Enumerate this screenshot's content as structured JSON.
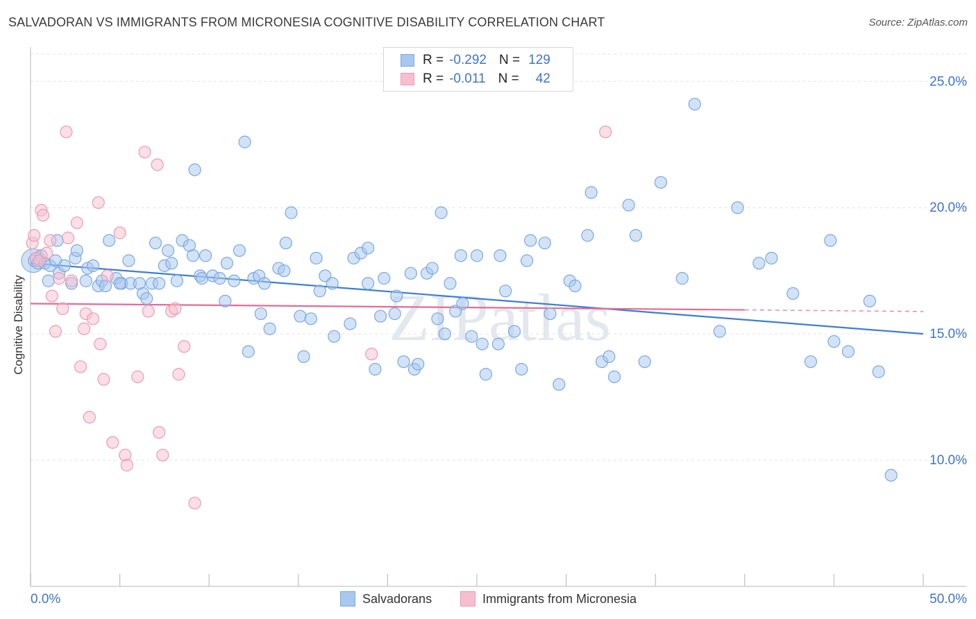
{
  "title": "SALVADORAN VS IMMIGRANTS FROM MICRONESIA COGNITIVE DISABILITY CORRELATION CHART",
  "source": "Source: ZipAtlas.com",
  "watermark": "ZIPatlas",
  "colors": {
    "blue_fill": "#a8c8ef",
    "blue_stroke": "#7aa8e0",
    "blue_line": "#3d7dd6",
    "pink_fill": "#f5bfd0",
    "pink_stroke": "#ec9ab5",
    "pink_line": "#e56b93",
    "axis_text": "#3e74c9",
    "grid": "#e3e3e3"
  },
  "legend": {
    "rows": [
      {
        "r_label": "R =",
        "r_value": "-0.292",
        "n_label": "N =",
        "n_value": "129"
      },
      {
        "r_label": "R =",
        "r_value": "-0.011",
        "n_label": "N =",
        "n_value": "42"
      }
    ]
  },
  "bottom_legend": {
    "series1": "Salvadorans",
    "series2": "Immigrants from Micronesia"
  },
  "chart_data": {
    "type": "scatter",
    "title": "SALVADORAN VS IMMIGRANTS FROM MICRONESIA COGNITIVE DISABILITY CORRELATION CHART",
    "xlabel": "",
    "ylabel": "Cognitive Disability",
    "xlim": [
      0,
      50
    ],
    "ylim": [
      5,
      26.3
    ],
    "x_tick_labels": [
      "0.0%",
      "50.0%"
    ],
    "y_ticks": [
      10,
      15,
      20,
      25
    ],
    "y_tick_labels": [
      "10.0%",
      "15.0%",
      "20.0%",
      "25.0%"
    ],
    "grid": true,
    "legend_position": "top-center",
    "series": [
      {
        "name": "Salvadorans",
        "R": -0.292,
        "N": 129,
        "trend": {
          "x": [
            0,
            50
          ],
          "y": [
            17.8,
            15.0
          ],
          "style": "solid"
        },
        "points": [
          [
            0.2,
            17.9
          ],
          [
            0.4,
            17.8
          ],
          [
            0.6,
            18.1
          ],
          [
            0.8,
            17.8
          ],
          [
            1.0,
            17.1
          ],
          [
            1.1,
            17.7
          ],
          [
            1.4,
            17.9
          ],
          [
            1.5,
            18.7
          ],
          [
            1.6,
            17.4
          ],
          [
            1.9,
            17.7
          ],
          [
            2.5,
            18.0
          ],
          [
            2.6,
            18.3
          ],
          [
            2.3,
            17.0
          ],
          [
            3.1,
            17.1
          ],
          [
            3.2,
            17.6
          ],
          [
            3.5,
            17.7
          ],
          [
            3.8,
            16.9
          ],
          [
            4.0,
            17.1
          ],
          [
            4.2,
            16.9
          ],
          [
            4.4,
            18.7
          ],
          [
            4.8,
            17.2
          ],
          [
            5.1,
            17.0
          ],
          [
            5.5,
            17.9
          ],
          [
            5.6,
            17.0
          ],
          [
            6.1,
            17.0
          ],
          [
            6.3,
            16.6
          ],
          [
            6.5,
            16.4
          ],
          [
            6.8,
            17.0
          ],
          [
            7.0,
            18.6
          ],
          [
            7.2,
            17.0
          ],
          [
            7.5,
            17.7
          ],
          [
            7.7,
            18.3
          ],
          [
            7.9,
            17.8
          ],
          [
            8.2,
            17.1
          ],
          [
            8.5,
            18.7
          ],
          [
            8.9,
            18.5
          ],
          [
            9.1,
            18.1
          ],
          [
            9.5,
            17.3
          ],
          [
            9.6,
            17.2
          ],
          [
            9.8,
            18.1
          ],
          [
            10.2,
            17.3
          ],
          [
            10.6,
            17.2
          ],
          [
            10.9,
            16.3
          ],
          [
            11.0,
            17.8
          ],
          [
            11.4,
            17.1
          ],
          [
            11.7,
            18.3
          ],
          [
            12.0,
            22.6
          ],
          [
            12.2,
            14.3
          ],
          [
            12.5,
            17.2
          ],
          [
            12.8,
            17.3
          ],
          [
            12.9,
            15.8
          ],
          [
            13.1,
            17.0
          ],
          [
            13.4,
            15.2
          ],
          [
            13.9,
            17.6
          ],
          [
            14.2,
            17.5
          ],
          [
            14.6,
            19.8
          ],
          [
            15.1,
            15.7
          ],
          [
            15.3,
            14.1
          ],
          [
            15.7,
            15.6
          ],
          [
            16.0,
            18.0
          ],
          [
            16.2,
            16.7
          ],
          [
            16.5,
            17.3
          ],
          [
            16.9,
            17.0
          ],
          [
            17.0,
            14.9
          ],
          [
            17.9,
            15.4
          ],
          [
            18.1,
            18.0
          ],
          [
            18.5,
            18.2
          ],
          [
            18.9,
            17.0
          ],
          [
            18.9,
            18.4
          ],
          [
            19.3,
            13.6
          ],
          [
            19.6,
            15.7
          ],
          [
            19.8,
            17.2
          ],
          [
            20.5,
            16.5
          ],
          [
            20.9,
            13.9
          ],
          [
            21.3,
            17.4
          ],
          [
            21.5,
            13.6
          ],
          [
            21.7,
            13.8
          ],
          [
            22.2,
            17.4
          ],
          [
            22.5,
            17.6
          ],
          [
            22.8,
            15.6
          ],
          [
            23.0,
            19.8
          ],
          [
            23.2,
            15.0
          ],
          [
            23.5,
            17.0
          ],
          [
            23.8,
            15.9
          ],
          [
            24.1,
            18.1
          ],
          [
            24.7,
            14.9
          ],
          [
            25.0,
            18.1
          ],
          [
            25.3,
            14.6
          ],
          [
            25.5,
            13.4
          ],
          [
            26.2,
            14.6
          ],
          [
            26.6,
            16.7
          ],
          [
            27.1,
            15.1
          ],
          [
            27.5,
            13.6
          ],
          [
            27.8,
            17.9
          ],
          [
            28.0,
            18.7
          ],
          [
            28.8,
            18.6
          ],
          [
            29.1,
            15.8
          ],
          [
            29.6,
            13.0
          ],
          [
            30.2,
            17.1
          ],
          [
            30.5,
            16.9
          ],
          [
            31.2,
            18.9
          ],
          [
            31.4,
            20.6
          ],
          [
            32.0,
            13.9
          ],
          [
            32.4,
            14.1
          ],
          [
            32.7,
            13.3
          ],
          [
            33.5,
            20.1
          ],
          [
            33.9,
            18.9
          ],
          [
            34.4,
            13.9
          ],
          [
            35.3,
            21.0
          ],
          [
            36.5,
            17.2
          ],
          [
            37.2,
            24.1
          ],
          [
            38.6,
            15.1
          ],
          [
            39.6,
            20.0
          ],
          [
            40.8,
            17.8
          ],
          [
            41.5,
            18.0
          ],
          [
            42.7,
            16.6
          ],
          [
            43.7,
            13.9
          ],
          [
            44.8,
            18.7
          ],
          [
            45.0,
            14.7
          ],
          [
            45.8,
            14.3
          ],
          [
            47.0,
            16.3
          ],
          [
            47.5,
            13.5
          ],
          [
            48.2,
            9.4
          ],
          [
            26.3,
            18.1
          ],
          [
            24.2,
            16.2
          ],
          [
            20.4,
            15.8
          ],
          [
            14.3,
            18.6
          ],
          [
            9.2,
            21.5
          ],
          [
            5.0,
            17.0
          ]
        ]
      },
      {
        "name": "Immigrants from Micronesia",
        "R": -0.011,
        "N": 42,
        "trend": {
          "x": [
            0,
            40
          ],
          "y": [
            16.2,
            15.95
          ],
          "style": "solid",
          "dashed_to_x": 50
        },
        "points": [
          [
            0.1,
            18.6
          ],
          [
            0.2,
            18.9
          ],
          [
            0.3,
            18.0
          ],
          [
            0.5,
            17.9
          ],
          [
            0.6,
            19.9
          ],
          [
            0.7,
            19.7
          ],
          [
            0.9,
            18.2
          ],
          [
            1.1,
            18.7
          ],
          [
            1.2,
            16.5
          ],
          [
            1.4,
            15.1
          ],
          [
            1.6,
            17.2
          ],
          [
            1.8,
            16.0
          ],
          [
            2.0,
            23.0
          ],
          [
            2.1,
            18.8
          ],
          [
            2.3,
            17.1
          ],
          [
            2.6,
            19.4
          ],
          [
            2.8,
            13.7
          ],
          [
            3.0,
            15.2
          ],
          [
            3.1,
            15.8
          ],
          [
            3.3,
            11.7
          ],
          [
            3.5,
            15.6
          ],
          [
            3.8,
            20.2
          ],
          [
            3.9,
            14.6
          ],
          [
            4.1,
            13.2
          ],
          [
            4.3,
            17.3
          ],
          [
            4.6,
            10.7
          ],
          [
            5.0,
            19.0
          ],
          [
            5.3,
            10.2
          ],
          [
            5.4,
            9.8
          ],
          [
            6.0,
            13.3
          ],
          [
            6.4,
            22.2
          ],
          [
            6.6,
            15.9
          ],
          [
            7.1,
            21.7
          ],
          [
            7.2,
            11.1
          ],
          [
            7.4,
            10.2
          ],
          [
            7.9,
            15.9
          ],
          [
            8.1,
            16.0
          ],
          [
            8.3,
            13.4
          ],
          [
            8.6,
            14.5
          ],
          [
            9.2,
            8.3
          ],
          [
            19.1,
            14.2
          ],
          [
            32.2,
            23.0
          ]
        ]
      }
    ]
  }
}
